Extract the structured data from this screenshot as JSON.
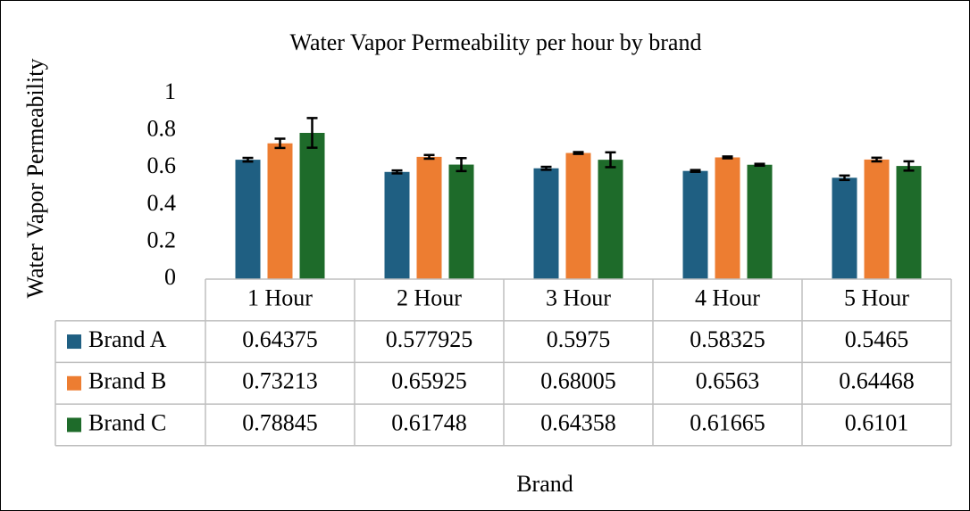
{
  "chart_data": {
    "type": "bar",
    "title": "Water Vapor Permeability per hour by brand",
    "y_label": "Water Vapor Permeability",
    "x_label": "Brand",
    "categories": [
      "1 Hour",
      "2 Hour",
      "3 Hour",
      "4 Hour",
      "5 Hour"
    ],
    "series": [
      {
        "name": "Brand A",
        "color": "#1f5f82",
        "values": [
          0.64375,
          0.577925,
          0.5975,
          0.58325,
          0.5465
        ],
        "errors": [
          0.01,
          0.008,
          0.008,
          0.005,
          0.012
        ]
      },
      {
        "name": "Brand B",
        "color": "#ed7d31",
        "values": [
          0.73213,
          0.65925,
          0.68005,
          0.6563,
          0.64468
        ],
        "errors": [
          0.025,
          0.01,
          0.005,
          0.005,
          0.01
        ]
      },
      {
        "name": "Brand C",
        "color": "#1e6b2a",
        "values": [
          0.78845,
          0.61748,
          0.64358,
          0.61665,
          0.6101
        ],
        "errors": [
          0.08,
          0.035,
          0.04,
          0.005,
          0.025
        ]
      }
    ],
    "ylim": [
      0,
      1
    ],
    "yticks": [
      0,
      0.2,
      0.4,
      0.6,
      0.8,
      1
    ],
    "grid": false,
    "data_table": true
  }
}
